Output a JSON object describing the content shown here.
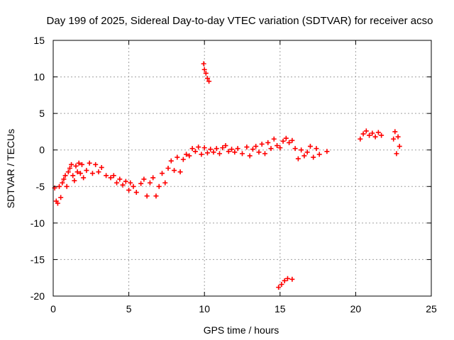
{
  "chart_data": {
    "type": "scatter",
    "title": "Day 199 of 2025, Sidereal Day-to-day VTEC variation (SDTVAR) for receiver acso",
    "xlabel": "GPS time / hours",
    "ylabel": "SDTVAR / TECUs",
    "xlim": [
      0,
      25
    ],
    "ylim": [
      -20,
      15
    ],
    "xticks": [
      0,
      5,
      10,
      15,
      20,
      25
    ],
    "yticks": [
      -20,
      -15,
      -10,
      -5,
      0,
      5,
      10,
      15
    ],
    "xtick_labels": [
      "0",
      "5",
      "10",
      "15",
      "20",
      "25"
    ],
    "ytick_labels": [
      "-20",
      "-15",
      "-10",
      "-5",
      "0",
      "5",
      "10",
      "15"
    ],
    "grid": true,
    "marker": "+",
    "color": "#ff0000",
    "series": [
      {
        "name": "SDTVAR",
        "points": [
          [
            0.1,
            -5.2
          ],
          [
            0.2,
            -7.0
          ],
          [
            0.3,
            -7.3
          ],
          [
            0.4,
            -5.0
          ],
          [
            0.5,
            -6.5
          ],
          [
            0.6,
            -4.5
          ],
          [
            0.7,
            -4.0
          ],
          [
            0.8,
            -3.5
          ],
          [
            0.9,
            -5.0
          ],
          [
            1.0,
            -3.0
          ],
          [
            1.1,
            -2.5
          ],
          [
            1.2,
            -2.0
          ],
          [
            1.3,
            -3.5
          ],
          [
            1.4,
            -4.2
          ],
          [
            1.5,
            -2.2
          ],
          [
            1.6,
            -3.0
          ],
          [
            1.7,
            -1.8
          ],
          [
            1.8,
            -3.2
          ],
          [
            1.9,
            -2.0
          ],
          [
            2.0,
            -3.8
          ],
          [
            2.2,
            -2.8
          ],
          [
            2.4,
            -1.8
          ],
          [
            2.6,
            -3.2
          ],
          [
            2.8,
            -2.0
          ],
          [
            3.0,
            -3.0
          ],
          [
            3.2,
            -2.4
          ],
          [
            3.5,
            -3.5
          ],
          [
            3.8,
            -3.8
          ],
          [
            4.0,
            -3.5
          ],
          [
            4.2,
            -4.5
          ],
          [
            4.4,
            -4.0
          ],
          [
            4.6,
            -4.8
          ],
          [
            4.8,
            -4.3
          ],
          [
            5.0,
            -5.5
          ],
          [
            5.1,
            -4.5
          ],
          [
            5.3,
            -5.0
          ],
          [
            5.5,
            -5.8
          ],
          [
            5.8,
            -4.6
          ],
          [
            6.0,
            -4.0
          ],
          [
            6.2,
            -6.3
          ],
          [
            6.4,
            -4.5
          ],
          [
            6.6,
            -3.8
          ],
          [
            6.8,
            -6.3
          ],
          [
            7.0,
            -5.0
          ],
          [
            7.2,
            -3.2
          ],
          [
            7.4,
            -4.5
          ],
          [
            7.6,
            -2.5
          ],
          [
            7.8,
            -1.5
          ],
          [
            8.0,
            -2.8
          ],
          [
            8.2,
            -1.0
          ],
          [
            8.4,
            -3.0
          ],
          [
            8.6,
            -1.3
          ],
          [
            8.8,
            -0.6
          ],
          [
            9.0,
            -0.8
          ],
          [
            9.2,
            0.2
          ],
          [
            9.4,
            -0.2
          ],
          [
            9.6,
            0.4
          ],
          [
            9.8,
            -0.6
          ],
          [
            10.0,
            0.3
          ],
          [
            10.2,
            -0.4
          ],
          [
            10.4,
            0.1
          ],
          [
            10.6,
            -0.3
          ],
          [
            10.8,
            0.2
          ],
          [
            11.0,
            -0.5
          ],
          [
            11.2,
            0.3
          ],
          [
            11.4,
            0.6
          ],
          [
            11.6,
            -0.2
          ],
          [
            11.8,
            0.1
          ],
          [
            12.0,
            -0.3
          ],
          [
            12.2,
            0.2
          ],
          [
            12.5,
            -0.5
          ],
          [
            12.8,
            0.4
          ],
          [
            13.0,
            -0.8
          ],
          [
            13.2,
            0.1
          ],
          [
            13.4,
            0.5
          ],
          [
            13.6,
            -0.3
          ],
          [
            13.8,
            0.8
          ],
          [
            14.0,
            -0.5
          ],
          [
            14.2,
            1.0
          ],
          [
            14.4,
            0.2
          ],
          [
            14.6,
            1.5
          ],
          [
            14.8,
            0.6
          ],
          [
            15.0,
            0.3
          ],
          [
            15.2,
            1.2
          ],
          [
            15.4,
            1.6
          ],
          [
            15.6,
            1.0
          ],
          [
            15.8,
            1.3
          ],
          [
            16.0,
            0.2
          ],
          [
            16.2,
            -1.2
          ],
          [
            16.4,
            0.0
          ],
          [
            16.6,
            -0.8
          ],
          [
            16.8,
            -0.3
          ],
          [
            17.0,
            0.5
          ],
          [
            17.2,
            -1.0
          ],
          [
            17.4,
            0.2
          ],
          [
            17.6,
            -0.6
          ],
          [
            18.1,
            -0.2
          ],
          [
            20.3,
            1.5
          ],
          [
            20.5,
            2.2
          ],
          [
            20.7,
            2.6
          ],
          [
            20.9,
            2.0
          ],
          [
            21.1,
            2.3
          ],
          [
            21.3,
            1.8
          ],
          [
            21.5,
            2.4
          ],
          [
            21.7,
            2.0
          ],
          [
            22.5,
            1.5
          ],
          [
            22.6,
            2.5
          ],
          [
            22.7,
            -0.5
          ],
          [
            22.8,
            1.8
          ],
          [
            22.9,
            0.5
          ],
          [
            9.95,
            11.8
          ],
          [
            10.0,
            11.0
          ],
          [
            10.1,
            10.5
          ],
          [
            10.2,
            9.8
          ],
          [
            10.3,
            9.4
          ],
          [
            14.9,
            -18.8
          ],
          [
            15.1,
            -18.4
          ],
          [
            15.3,
            -17.9
          ],
          [
            15.5,
            -17.6
          ],
          [
            15.8,
            -17.7
          ]
        ]
      }
    ]
  }
}
